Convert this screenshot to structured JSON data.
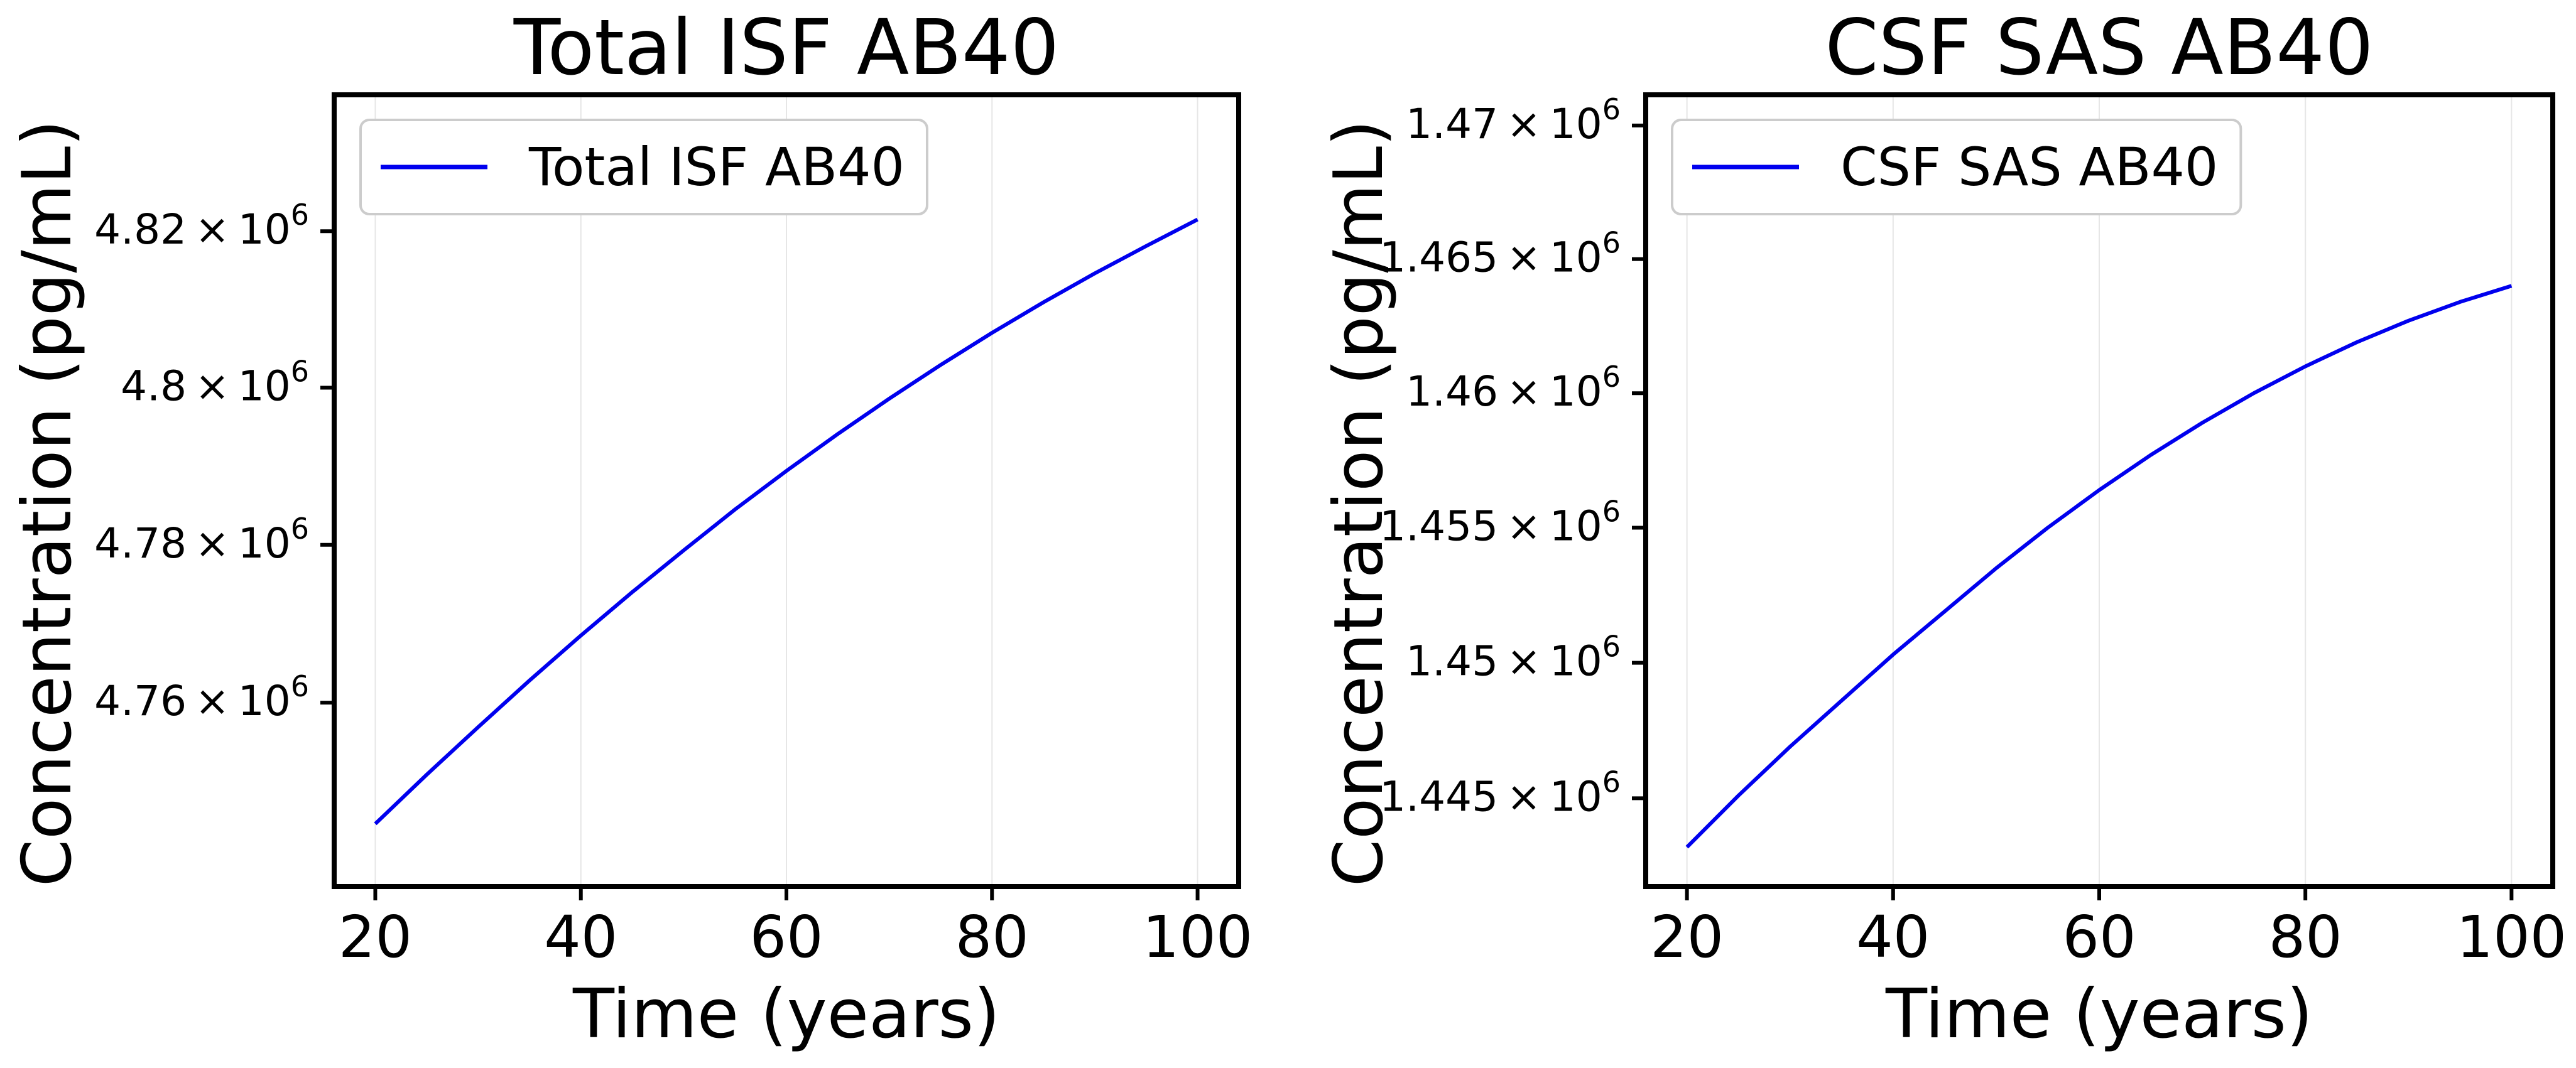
{
  "chart_data": [
    {
      "type": "line",
      "title": "Total ISF AB40",
      "xlabel": "Time (years)",
      "ylabel": "Concentration (pg/mL)",
      "xlim": [
        16,
        104
      ],
      "ylim": [
        4736800,
        4837500
      ],
      "yscale": "log",
      "grid": "vertical",
      "legend_position": "top-left",
      "x_ticks": [
        20,
        40,
        60,
        80,
        100
      ],
      "x_tick_labels": [
        "20",
        "40",
        "60",
        "80",
        "100"
      ],
      "y_ticks": [
        4760000,
        4780000,
        4800000,
        4820000
      ],
      "y_tick_labels": [
        {
          "mantissa": "4.76",
          "exponent": "6"
        },
        {
          "mantissa": "4.78",
          "exponent": "6"
        },
        {
          "mantissa": "4.8",
          "exponent": "6"
        },
        {
          "mantissa": "4.82",
          "exponent": "6"
        }
      ],
      "series": [
        {
          "name": "Total ISF AB40",
          "color": "#0000ee",
          "x": [
            20,
            25,
            30,
            35,
            40,
            45,
            50,
            55,
            60,
            65,
            70,
            75,
            80,
            85,
            90,
            95,
            100
          ],
          "y": [
            4744700,
            4750900,
            4756900,
            4762800,
            4768500,
            4774000,
            4779300,
            4784500,
            4789400,
            4794100,
            4798600,
            4802900,
            4807000,
            4810900,
            4814600,
            4818100,
            4821500
          ]
        }
      ]
    },
    {
      "type": "line",
      "title": "CSF SAS AB40",
      "xlabel": "Time (years)",
      "ylabel": "Concentration (pg/mL)",
      "xlim": [
        16,
        104
      ],
      "ylim": [
        1441750,
        1471150
      ],
      "yscale": "log",
      "grid": "vertical",
      "legend_position": "top-left",
      "x_ticks": [
        20,
        40,
        60,
        80,
        100
      ],
      "x_tick_labels": [
        "20",
        "40",
        "60",
        "80",
        "100"
      ],
      "y_ticks": [
        1445000,
        1450000,
        1455000,
        1460000,
        1465000,
        1470000
      ],
      "y_tick_labels": [
        {
          "mantissa": "1.445",
          "exponent": "6"
        },
        {
          "mantissa": "1.45",
          "exponent": "6"
        },
        {
          "mantissa": "1.455",
          "exponent": "6"
        },
        {
          "mantissa": "1.46",
          "exponent": "6"
        },
        {
          "mantissa": "1.465",
          "exponent": "6"
        },
        {
          "mantissa": "1.47",
          "exponent": "6"
        }
      ],
      "series": [
        {
          "name": "CSF SAS AB40",
          "color": "#0000ee",
          "x": [
            20,
            25,
            30,
            35,
            40,
            45,
            50,
            55,
            60,
            65,
            70,
            75,
            80,
            85,
            90,
            95,
            100
          ],
          "y": [
            1443200,
            1445100,
            1446900,
            1448600,
            1450300,
            1451900,
            1453500,
            1455000,
            1456400,
            1457700,
            1458900,
            1460000,
            1461000,
            1461900,
            1462700,
            1463400,
            1464000
          ]
        }
      ]
    }
  ]
}
